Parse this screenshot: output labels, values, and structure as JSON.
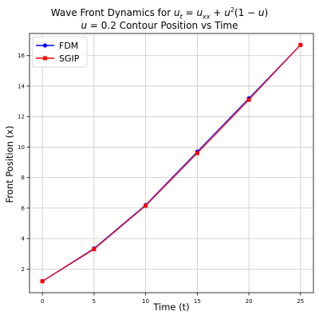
{
  "chart_data": {
    "type": "line",
    "title": "Wave Front Dynamics for u_t = u_xx + u^2(1 - u)",
    "subtitle": "u = 0.2 Contour Position vs Time",
    "xlabel": "Time (t)",
    "ylabel": "Front Position (x)",
    "x": [
      0,
      5,
      10,
      15,
      20,
      25
    ],
    "xticks": [
      0,
      5,
      10,
      15,
      20,
      25
    ],
    "yticks": [
      2,
      4,
      6,
      8,
      10,
      12,
      14,
      16
    ],
    "xlim": [
      -1.25,
      26.25
    ],
    "ylim": [
      0.45,
      17.45
    ],
    "grid": true,
    "legend": "top-left",
    "series": [
      {
        "name": "FDM",
        "color": "#0000ff",
        "marker": "circle",
        "values": [
          1.2,
          3.35,
          6.2,
          9.7,
          13.2,
          16.7
        ]
      },
      {
        "name": "SGIP",
        "color": "#ff0000",
        "marker": "square",
        "values": [
          1.2,
          3.3,
          6.15,
          9.6,
          13.1,
          16.7
        ]
      }
    ]
  }
}
